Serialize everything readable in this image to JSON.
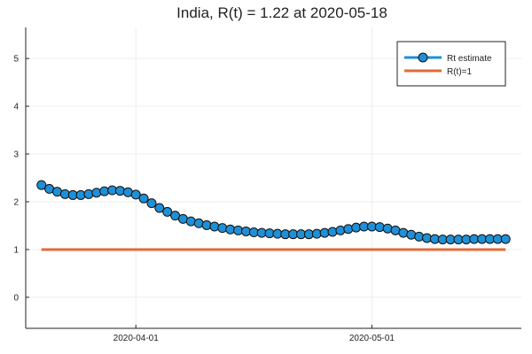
{
  "chart_data": {
    "type": "line",
    "title": "India, R(t) = 1.22 at 2020-05-18",
    "xlabel": "",
    "ylabel": "",
    "x_start": "2020-03-20",
    "x_end": "2020-05-18",
    "xlim": [
      "2020-03-18",
      "2020-05-20"
    ],
    "ylim": [
      -0.65,
      5.65
    ],
    "grid": true,
    "legend_position": "top-right",
    "x_ticks": [
      {
        "date": "2020-04-01",
        "label": "2020-04-01"
      },
      {
        "date": "2020-05-01",
        "label": "2020-05-01"
      }
    ],
    "y_ticks": [
      0,
      1,
      2,
      3,
      4,
      5
    ],
    "series": [
      {
        "name": "Rt estimate",
        "color": "#1f8fd6",
        "marker": "circle",
        "values": [
          2.35,
          2.27,
          2.21,
          2.16,
          2.14,
          2.14,
          2.16,
          2.19,
          2.22,
          2.24,
          2.23,
          2.2,
          2.15,
          2.07,
          1.97,
          1.87,
          1.79,
          1.71,
          1.64,
          1.59,
          1.55,
          1.51,
          1.48,
          1.45,
          1.42,
          1.4,
          1.38,
          1.36,
          1.35,
          1.34,
          1.33,
          1.32,
          1.32,
          1.32,
          1.32,
          1.33,
          1.35,
          1.37,
          1.4,
          1.43,
          1.46,
          1.48,
          1.48,
          1.47,
          1.44,
          1.4,
          1.35,
          1.31,
          1.27,
          1.24,
          1.22,
          1.21,
          1.21,
          1.21,
          1.21,
          1.22,
          1.22,
          1.22,
          1.22,
          1.22
        ]
      },
      {
        "name": "R(t)=1",
        "color": "#e06a3a",
        "marker": "none",
        "values": [
          1,
          1
        ]
      }
    ]
  }
}
